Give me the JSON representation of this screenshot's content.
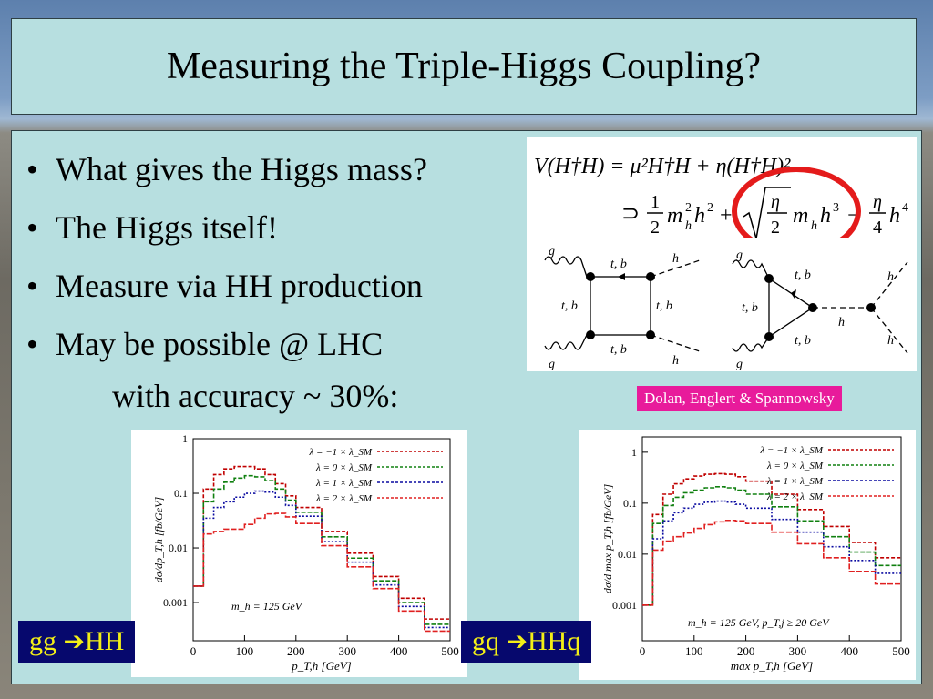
{
  "title": "Measuring the Triple-Higgs Coupling?",
  "bullets": [
    "What gives the Higgs mass?",
    "The Higgs itself!",
    "Measure via HH production",
    "May be possible @ LHC"
  ],
  "indent_line": "with accuracy ~ 30%:",
  "reference": "Dolan, Englert & Spannowsky",
  "proc_left": {
    "text": "gg",
    "arrow": "➔",
    "result": "HH"
  },
  "proc_right": {
    "text": "gq",
    "arrow": "➔",
    "result": "HHq"
  },
  "equation": {
    "line1": "V(H†H) = μ²H†H + η(H†H)²",
    "line2_parts": [
      "⊃",
      "1",
      "2",
      "m",
      "h",
      "2",
      "h",
      "2",
      "+",
      "η",
      "2",
      "m",
      "h",
      "h",
      "3",
      "−",
      "η",
      "4",
      "h",
      "4"
    ],
    "highlight_color": "#e41b1b"
  },
  "feynman": {
    "box_labels": {
      "g_top": "g",
      "g_bot": "g",
      "tb_top": "t, b",
      "tb_left": "t, b",
      "tb_right": "t, b",
      "tb_bot": "t, b",
      "h_top": "h",
      "h_bot": "h"
    },
    "tri_labels": {
      "g_top": "g",
      "g_bot": "g",
      "tb_top": "t, b",
      "tb_left": "t, b",
      "tb_bot": "t, b",
      "h_mid": "h",
      "h_top": "h",
      "h_bot": "h"
    }
  },
  "chart_data": [
    {
      "type": "line",
      "xlabel": "p_T,h [GeV]",
      "ylabel": "dσ/dp_T,h [fb/GeV]",
      "xlim": [
        0,
        500
      ],
      "ylim": [
        0.0002,
        1
      ],
      "log_y": true,
      "xticks": [
        "0",
        "100",
        "200",
        "300",
        "400",
        "500"
      ],
      "yticks": [
        "1",
        "0.1",
        "0.01",
        "0.001"
      ],
      "annotation": "m_h = 125 GeV",
      "legend_position": "top-right",
      "x": [
        0,
        20,
        40,
        60,
        80,
        100,
        120,
        140,
        160,
        180,
        200,
        250,
        300,
        350,
        400,
        450,
        500
      ],
      "series": [
        {
          "name": "λ = −1 × λ_SM",
          "color": "#c00000",
          "values": [
            0.002,
            0.12,
            0.22,
            0.28,
            0.31,
            0.31,
            0.28,
            0.22,
            0.15,
            0.09,
            0.055,
            0.02,
            0.008,
            0.003,
            0.0012,
            0.0005,
            0.0002
          ]
        },
        {
          "name": "λ = 0 × λ_SM",
          "color": "#108010",
          "values": [
            0.002,
            0.07,
            0.12,
            0.16,
            0.19,
            0.21,
            0.2,
            0.17,
            0.12,
            0.075,
            0.045,
            0.016,
            0.0065,
            0.0025,
            0.001,
            0.0004,
            0.00018
          ]
        },
        {
          "name": "λ = 1 × λ_SM",
          "color": "#0a0aa0",
          "values": [
            0.002,
            0.035,
            0.055,
            0.07,
            0.085,
            0.1,
            0.11,
            0.105,
            0.085,
            0.06,
            0.038,
            0.013,
            0.0055,
            0.0021,
            0.00085,
            0.00035,
            0.00015
          ]
        },
        {
          "name": "λ = 2 × λ_SM",
          "color": "#e02020",
          "values": [
            0.002,
            0.018,
            0.02,
            0.022,
            0.022,
            0.027,
            0.035,
            0.042,
            0.043,
            0.037,
            0.028,
            0.011,
            0.0045,
            0.0018,
            0.0007,
            0.0003,
            0.00012
          ]
        }
      ]
    },
    {
      "type": "line",
      "xlabel": "max p_T,h [GeV]",
      "ylabel": "dσ/d max p_T,h [fb/GeV]",
      "xlim": [
        0,
        500
      ],
      "ylim": [
        0.0002,
        2
      ],
      "log_y": true,
      "xticks": [
        "0",
        "100",
        "200",
        "300",
        "400",
        "500"
      ],
      "yticks": [
        "1",
        "0.1",
        "0.01",
        "0.001"
      ],
      "annotation": "m_h = 125 GeV, p_T,j ≥ 20 GeV",
      "legend_position": "top-right",
      "x": [
        0,
        20,
        40,
        60,
        80,
        100,
        120,
        140,
        160,
        180,
        200,
        250,
        300,
        350,
        400,
        450,
        500
      ],
      "series": [
        {
          "name": "λ = −1 × λ_SM",
          "color": "#c00000",
          "values": [
            0.001,
            0.06,
            0.15,
            0.24,
            0.3,
            0.34,
            0.37,
            0.38,
            0.37,
            0.33,
            0.27,
            0.15,
            0.075,
            0.035,
            0.017,
            0.0085,
            0.005
          ]
        },
        {
          "name": "λ = 0 × λ_SM",
          "color": "#108010",
          "values": [
            0.001,
            0.04,
            0.09,
            0.13,
            0.16,
            0.18,
            0.2,
            0.21,
            0.2,
            0.18,
            0.15,
            0.085,
            0.045,
            0.022,
            0.011,
            0.006,
            0.0035
          ]
        },
        {
          "name": "λ = 1 × λ_SM",
          "color": "#0a0aa0",
          "values": [
            0.001,
            0.02,
            0.045,
            0.065,
            0.08,
            0.095,
            0.105,
            0.11,
            0.105,
            0.095,
            0.08,
            0.048,
            0.027,
            0.014,
            0.0075,
            0.0042,
            0.0025
          ]
        },
        {
          "name": "λ = 2 × λ_SM",
          "color": "#e02020",
          "values": [
            0.001,
            0.012,
            0.018,
            0.022,
            0.026,
            0.032,
            0.038,
            0.043,
            0.046,
            0.045,
            0.04,
            0.027,
            0.016,
            0.0085,
            0.0046,
            0.0026,
            0.0015
          ]
        }
      ]
    }
  ]
}
